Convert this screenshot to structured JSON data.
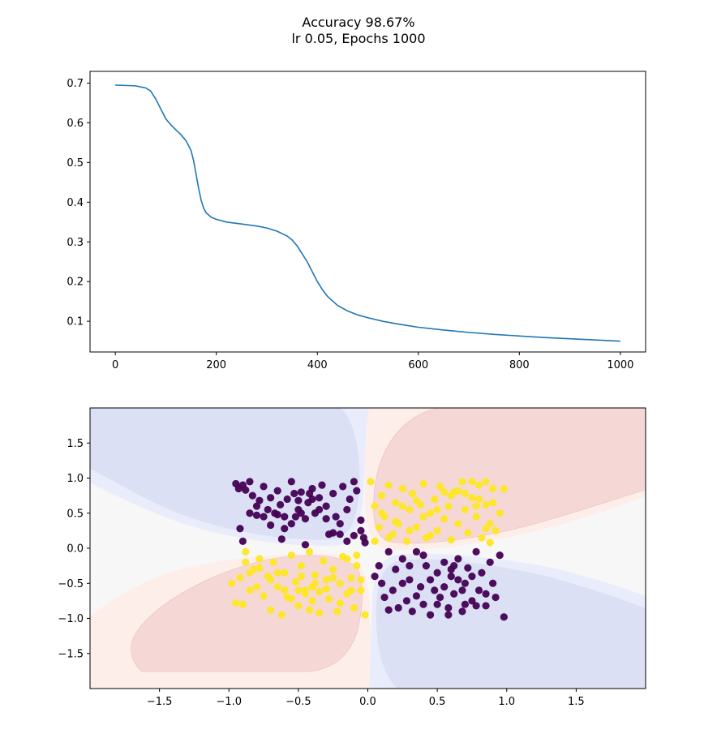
{
  "figure": {
    "title_line1": "Accuracy 98.67%",
    "title_line2": "lr 0.05, Epochs 1000"
  },
  "chart_data": [
    {
      "type": "line",
      "title": "",
      "xlabel": "",
      "ylabel": "",
      "xlim": [
        -50,
        1050
      ],
      "ylim": [
        0.0227,
        0.7295
      ],
      "xticks": [
        0,
        200,
        400,
        600,
        800,
        1000
      ],
      "yticks": [
        0.1,
        0.2,
        0.3,
        0.4,
        0.5,
        0.6,
        0.7
      ],
      "grid": false,
      "color": "#1f77b4",
      "series": [
        {
          "x": [
            0,
            20,
            40,
            60,
            70,
            80,
            90,
            100,
            110,
            120,
            130,
            140,
            150,
            155,
            160,
            165,
            170,
            175,
            180,
            190,
            200,
            220,
            250,
            280,
            300,
            320,
            340,
            350,
            360,
            370,
            380,
            390,
            400,
            410,
            420,
            440,
            460,
            480,
            500,
            530,
            560,
            600,
            650,
            700,
            750,
            800,
            850,
            900,
            950,
            1000
          ],
          "values": [
            0.695,
            0.694,
            0.693,
            0.688,
            0.68,
            0.66,
            0.635,
            0.61,
            0.595,
            0.582,
            0.57,
            0.555,
            0.53,
            0.505,
            0.47,
            0.435,
            0.405,
            0.385,
            0.373,
            0.362,
            0.357,
            0.35,
            0.345,
            0.34,
            0.335,
            0.327,
            0.315,
            0.305,
            0.29,
            0.27,
            0.25,
            0.225,
            0.2,
            0.18,
            0.163,
            0.14,
            0.126,
            0.116,
            0.109,
            0.1,
            0.093,
            0.085,
            0.078,
            0.072,
            0.067,
            0.063,
            0.059,
            0.056,
            0.053,
            0.05
          ]
        }
      ]
    },
    {
      "type": "scatter",
      "title": "",
      "xlabel": "",
      "ylabel": "",
      "xlim": [
        -2.0,
        2.0
      ],
      "ylim": [
        -2.0,
        2.0
      ],
      "xticks": [
        -1.5,
        -1.0,
        -0.5,
        0.0,
        0.5,
        1.0,
        1.5
      ],
      "yticks": [
        -1.5,
        -1.0,
        -0.5,
        0.0,
        0.5,
        1.0,
        1.5
      ],
      "grid": false,
      "background": "decision boundary contour (red = class 1, blue = class 0)",
      "class_colors": {
        "class_0": "#440154",
        "class_1": "#fde725"
      },
      "contour_colors": {
        "blue_strong": "#dbe0f4",
        "blue_light": "#e9ecfb",
        "neutral": "#f7f7f7",
        "red_light": "#fdeeea",
        "red_strong": "#f5d8d6"
      },
      "series": [
        {
          "name": "",
          "class": 0,
          "points": [
            [
              -0.95,
              0.92
            ],
            [
              -0.93,
              0.85
            ],
            [
              -0.9,
              0.9
            ],
            [
              -0.88,
              0.83
            ],
            [
              -0.85,
              0.95
            ],
            [
              -0.83,
              0.75
            ],
            [
              -0.8,
              0.6
            ],
            [
              -0.78,
              0.68
            ],
            [
              -0.75,
              0.88
            ],
            [
              -0.72,
              0.55
            ],
            [
              -0.7,
              0.72
            ],
            [
              -0.67,
              0.5
            ],
            [
              -0.65,
              0.82
            ],
            [
              -0.63,
              0.62
            ],
            [
              -0.6,
              0.45
            ],
            [
              -0.58,
              0.7
            ],
            [
              -0.55,
              0.35
            ],
            [
              -0.53,
              0.78
            ],
            [
              -0.5,
              0.55
            ],
            [
              -0.48,
              0.8
            ],
            [
              -0.45,
              0.42
            ],
            [
              -0.43,
              0.65
            ],
            [
              -0.4,
              0.85
            ],
            [
              -0.38,
              0.5
            ],
            [
              -0.35,
              0.72
            ],
            [
              -0.33,
              0.9
            ],
            [
              -0.3,
              0.6
            ],
            [
              -0.28,
              0.2
            ],
            [
              -0.25,
              0.78
            ],
            [
              -0.23,
              0.45
            ],
            [
              -0.2,
              0.35
            ],
            [
              -0.18,
              0.88
            ],
            [
              -0.15,
              0.55
            ],
            [
              -0.13,
              0.7
            ],
            [
              -0.1,
              0.95
            ],
            [
              -0.08,
              0.82
            ],
            [
              -0.05,
              0.25
            ],
            [
              -0.03,
              0.15
            ],
            [
              -0.92,
              0.28
            ],
            [
              -0.9,
              0.1
            ],
            [
              -0.85,
              0.5
            ],
            [
              -0.8,
              0.47
            ],
            [
              -0.75,
              0.45
            ],
            [
              -0.7,
              0.33
            ],
            [
              -0.62,
              0.13
            ],
            [
              -0.55,
              0.95
            ],
            [
              -0.5,
              0.68
            ],
            [
              -0.45,
              0.05
            ],
            [
              -0.42,
              0.78
            ],
            [
              -0.35,
              0.55
            ],
            [
              -0.3,
              0.42
            ],
            [
              -0.25,
              0.22
            ],
            [
              -0.2,
              0.2
            ],
            [
              -0.15,
              0.1
            ],
            [
              -0.1,
              0.18
            ],
            [
              -0.65,
              0.48
            ],
            [
              -0.6,
              0.28
            ],
            [
              -0.52,
              0.45
            ],
            [
              -0.48,
              0.5
            ],
            [
              -0.4,
              0.7
            ],
            [
              -0.05,
              0.4
            ],
            [
              -0.02,
              0.08
            ],
            [
              0.05,
              -0.4
            ],
            [
              0.08,
              -0.25
            ],
            [
              0.1,
              -0.5
            ],
            [
              0.12,
              -0.7
            ],
            [
              0.15,
              -0.05
            ],
            [
              0.18,
              -0.6
            ],
            [
              0.2,
              -0.3
            ],
            [
              0.22,
              -0.85
            ],
            [
              0.25,
              -0.15
            ],
            [
              0.28,
              -0.75
            ],
            [
              0.3,
              -0.45
            ],
            [
              0.32,
              -0.9
            ],
            [
              0.35,
              -0.05
            ],
            [
              0.38,
              -0.55
            ],
            [
              0.4,
              -0.8
            ],
            [
              0.42,
              -0.25
            ],
            [
              0.45,
              -0.95
            ],
            [
              0.48,
              -0.6
            ],
            [
              0.5,
              -0.35
            ],
            [
              0.52,
              -0.7
            ],
            [
              0.55,
              -0.2
            ],
            [
              0.58,
              -0.85
            ],
            [
              0.6,
              -0.4
            ],
            [
              0.62,
              -0.65
            ],
            [
              0.65,
              -0.15
            ],
            [
              0.68,
              -0.9
            ],
            [
              0.7,
              -0.5
            ],
            [
              0.72,
              -0.28
            ],
            [
              0.75,
              -0.75
            ],
            [
              0.78,
              -0.05
            ],
            [
              0.8,
              -0.6
            ],
            [
              0.82,
              -0.35
            ],
            [
              0.85,
              -0.82
            ],
            [
              0.88,
              -0.2
            ],
            [
              0.9,
              -0.5
            ],
            [
              0.92,
              -0.7
            ],
            [
              0.95,
              -0.1
            ],
            [
              0.98,
              -0.98
            ],
            [
              0.55,
              -0.55
            ],
            [
              0.6,
              -0.3
            ],
            [
              0.65,
              -0.45
            ],
            [
              0.5,
              -0.8
            ],
            [
              0.45,
              -0.45
            ],
            [
              0.4,
              -0.1
            ],
            [
              0.3,
              -0.25
            ],
            [
              0.25,
              -0.5
            ],
            [
              0.7,
              -0.8
            ],
            [
              0.75,
              -0.4
            ],
            [
              0.85,
              -0.65
            ],
            [
              0.58,
              -0.95
            ],
            [
              0.35,
              -0.68
            ],
            [
              0.15,
              -0.88
            ],
            [
              0.62,
              -0.25
            ],
            [
              0.68,
              -0.6
            ],
            [
              0.78,
              -0.82
            ]
          ]
        },
        {
          "name": "",
          "class": 1,
          "points": [
            [
              0.02,
              0.95
            ],
            [
              0.05,
              0.6
            ],
            [
              0.08,
              0.3
            ],
            [
              0.1,
              0.75
            ],
            [
              0.12,
              0.45
            ],
            [
              0.15,
              0.9
            ],
            [
              0.18,
              0.2
            ],
            [
              0.2,
              0.65
            ],
            [
              0.22,
              0.35
            ],
            [
              0.25,
              0.85
            ],
            [
              0.28,
              0.1
            ],
            [
              0.3,
              0.55
            ],
            [
              0.32,
              0.78
            ],
            [
              0.35,
              0.3
            ],
            [
              0.38,
              0.62
            ],
            [
              0.4,
              0.92
            ],
            [
              0.42,
              0.15
            ],
            [
              0.45,
              0.5
            ],
            [
              0.48,
              0.7
            ],
            [
              0.5,
              0.25
            ],
            [
              0.52,
              0.88
            ],
            [
              0.55,
              0.42
            ],
            [
              0.58,
              0.6
            ],
            [
              0.6,
              0.12
            ],
            [
              0.62,
              0.8
            ],
            [
              0.65,
              0.35
            ],
            [
              0.68,
              0.95
            ],
            [
              0.7,
              0.55
            ],
            [
              0.72,
              0.22
            ],
            [
              0.75,
              0.72
            ],
            [
              0.78,
              0.45
            ],
            [
              0.8,
              0.9
            ],
            [
              0.82,
              0.15
            ],
            [
              0.85,
              0.62
            ],
            [
              0.88,
              0.35
            ],
            [
              0.9,
              0.85
            ],
            [
              0.92,
              0.25
            ],
            [
              0.95,
              0.5
            ],
            [
              0.98,
              0.85
            ],
            [
              0.6,
              0.75
            ],
            [
              0.7,
              0.78
            ],
            [
              0.8,
              0.7
            ],
            [
              0.85,
              0.95
            ],
            [
              0.65,
              0.82
            ],
            [
              0.55,
              0.8
            ],
            [
              0.75,
              0.95
            ],
            [
              0.05,
              0.1
            ],
            [
              0.1,
              0.5
            ],
            [
              0.2,
              0.38
            ],
            [
              0.25,
              0.6
            ],
            [
              0.3,
              0.25
            ],
            [
              0.15,
              0.15
            ],
            [
              0.35,
              0.68
            ],
            [
              0.4,
              0.45
            ],
            [
              0.45,
              0.18
            ],
            [
              0.5,
              0.55
            ],
            [
              0.85,
              0.28
            ],
            [
              0.88,
              0.08
            ],
            [
              0.78,
              0.6
            ],
            [
              0.9,
              0.65
            ],
            [
              -0.98,
              -0.5
            ],
            [
              -0.95,
              -0.78
            ],
            [
              -0.92,
              -0.42
            ],
            [
              -0.9,
              -0.8
            ],
            [
              -0.88,
              -0.2
            ],
            [
              -0.85,
              -0.6
            ],
            [
              -0.82,
              -0.3
            ],
            [
              -0.8,
              -0.55
            ],
            [
              -0.78,
              -0.15
            ],
            [
              -0.75,
              -0.68
            ],
            [
              -0.72,
              -0.4
            ],
            [
              -0.7,
              -0.88
            ],
            [
              -0.68,
              -0.2
            ],
            [
              -0.65,
              -0.55
            ],
            [
              -0.62,
              -0.95
            ],
            [
              -0.6,
              -0.35
            ],
            [
              -0.58,
              -0.7
            ],
            [
              -0.55,
              -0.1
            ],
            [
              -0.52,
              -0.48
            ],
            [
              -0.5,
              -0.82
            ],
            [
              -0.48,
              -0.25
            ],
            [
              -0.45,
              -0.6
            ],
            [
              -0.42,
              -0.05
            ],
            [
              -0.4,
              -0.75
            ],
            [
              -0.38,
              -0.38
            ],
            [
              -0.35,
              -0.92
            ],
            [
              -0.32,
              -0.18
            ],
            [
              -0.3,
              -0.58
            ],
            [
              -0.28,
              -0.72
            ],
            [
              -0.25,
              -0.3
            ],
            [
              -0.22,
              -0.9
            ],
            [
              -0.2,
              -0.5
            ],
            [
              -0.18,
              -0.12
            ],
            [
              -0.15,
              -0.65
            ],
            [
              -0.12,
              -0.42
            ],
            [
              -0.1,
              -0.85
            ],
            [
              -0.08,
              -0.25
            ],
            [
              -0.05,
              -0.6
            ],
            [
              -0.02,
              -0.95
            ],
            [
              -0.5,
              -0.6
            ],
            [
              -0.45,
              -0.65
            ],
            [
              -0.4,
              -0.55
            ],
            [
              -0.35,
              -0.62
            ],
            [
              -0.3,
              -0.45
            ],
            [
              -0.55,
              -0.72
            ],
            [
              -0.6,
              -0.6
            ],
            [
              -0.85,
              -0.35
            ],
            [
              -0.78,
              -0.28
            ],
            [
              -0.65,
              -0.35
            ],
            [
              -0.42,
              -0.88
            ],
            [
              -0.25,
              -0.42
            ],
            [
              -0.15,
              -0.15
            ],
            [
              -0.05,
              -0.45
            ],
            [
              -0.88,
              -0.05
            ],
            [
              -0.7,
              -0.45
            ],
            [
              -0.38,
              -0.5
            ],
            [
              -0.48,
              -0.4
            ],
            [
              -0.2,
              -0.78
            ],
            [
              -0.12,
              -0.6
            ],
            [
              -0.08,
              -0.1
            ]
          ]
        }
      ]
    }
  ]
}
